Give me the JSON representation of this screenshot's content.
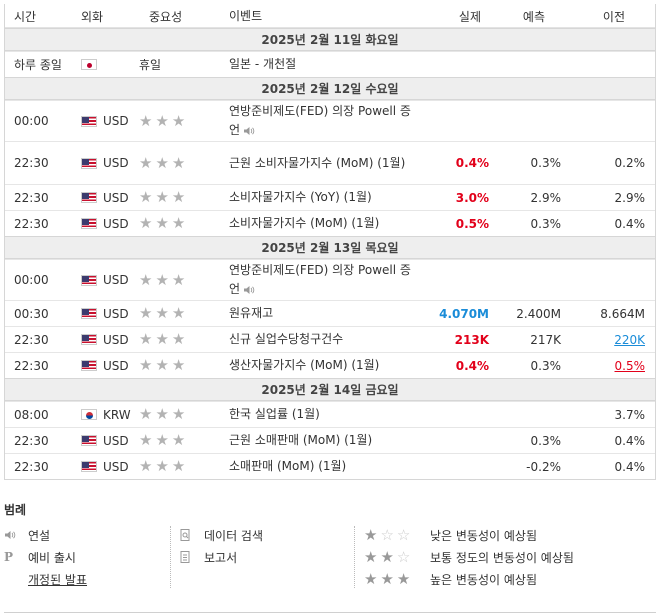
{
  "header": {
    "time": "시간",
    "currency": "외화",
    "importance": "중요성",
    "event": "이벤트",
    "actual": "실제",
    "forecast": "예측",
    "previous": "이전"
  },
  "dates": [
    "2025년 2월 11일 화요일",
    "2025년 2월 12일 수요일",
    "2025년 2월 13일 목요일",
    "2025년 2월 14일 금요일"
  ],
  "rows": [
    {
      "time": "하루 종일",
      "currency": "",
      "flag": "japan-flag",
      "importance": "휴일",
      "event": "일본 - 개천절",
      "actual": "",
      "forecast": "",
      "previous": ""
    },
    {
      "time": "00:00",
      "currency": "USD",
      "flag": "us-flag",
      "event": "연방준비제도(FED) 의장 Powell 증언",
      "actual": "",
      "forecast": "",
      "previous": "",
      "speech": true
    },
    {
      "time": "22:30",
      "currency": "USD",
      "flag": "us-flag",
      "event": "근원 소비자물가지수 (MoM) (1월)",
      "actual": "0.4%",
      "forecast": "0.3%",
      "previous": "0.2%"
    },
    {
      "time": "22:30",
      "currency": "USD",
      "flag": "us-flag",
      "event": "소비자물가지수 (YoY) (1월)",
      "actual": "3.0%",
      "forecast": "2.9%",
      "previous": "2.9%"
    },
    {
      "time": "22:30",
      "currency": "USD",
      "flag": "us-flag",
      "event": "소비자물가지수 (MoM) (1월)",
      "actual": "0.5%",
      "forecast": "0.3%",
      "previous": "0.4%"
    },
    {
      "time": "00:00",
      "currency": "USD",
      "flag": "us-flag",
      "event": "연방준비제도(FED) 의장 Powell 증언",
      "actual": "",
      "forecast": "",
      "previous": "",
      "speech": true
    },
    {
      "time": "00:30",
      "currency": "USD",
      "flag": "us-flag",
      "event": "원유재고",
      "actual": "4.070M",
      "forecast": "2.400M",
      "previous": "8.664M"
    },
    {
      "time": "22:30",
      "currency": "USD",
      "flag": "us-flag",
      "event": "신규 실업수당청구건수",
      "actual": "213K",
      "forecast": "217K",
      "previous": "220K"
    },
    {
      "time": "22:30",
      "currency": "USD",
      "flag": "us-flag",
      "event": "생산자물가지수 (MoM) (1월)",
      "actual": "0.4%",
      "forecast": "0.3%",
      "previous": "0.5%"
    },
    {
      "time": "08:00",
      "currency": "KRW",
      "flag": "korea-flag",
      "event": "한국 실업률 (1월)",
      "actual": "",
      "forecast": "",
      "previous": "3.7%"
    },
    {
      "time": "22:30",
      "currency": "USD",
      "flag": "us-flag",
      "event": "근원 소매판매 (MoM) (1월)",
      "actual": "",
      "forecast": "0.3%",
      "previous": "0.4%"
    },
    {
      "time": "22:30",
      "currency": "USD",
      "flag": "us-flag",
      "event": "소매판매 (MoM) (1월)",
      "actual": "",
      "forecast": "-0.2%",
      "previous": "0.4%"
    }
  ],
  "colors": {
    "actual_red": "#e2001a",
    "actual_blue": "#1a8cd8",
    "date_bg": "#eeeeee",
    "star": "#b3b3b3"
  },
  "legend": {
    "title": "범례",
    "speech": "연설",
    "preliminary": "예비 출시",
    "revised": "개정된 발표",
    "data_search": "데이터 검색",
    "report": "보고서",
    "low": "낮은 변동성이 예상됨",
    "medium": "보통 정도의 변동성이 예상됨",
    "high": "높은 변동성이 예상됨"
  }
}
